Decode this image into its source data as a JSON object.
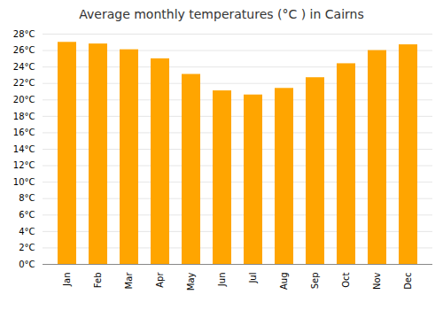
{
  "chart_data": {
    "type": "bar",
    "title": "Average monthly temperatures (°C ) in Cairns",
    "categories": [
      "Jan",
      "Feb",
      "Mar",
      "Apr",
      "May",
      "Jun",
      "Jul",
      "Aug",
      "Sep",
      "Oct",
      "Nov",
      "Dec"
    ],
    "values": [
      27.0,
      26.8,
      26.1,
      25.0,
      23.1,
      21.1,
      20.6,
      21.4,
      22.7,
      24.4,
      26.0,
      26.7
    ],
    "color": "#FFA500",
    "ylim": [
      0,
      28
    ],
    "yticks": [
      {
        "value": 0,
        "label": "0°C"
      },
      {
        "value": 2,
        "label": "2°C"
      },
      {
        "value": 4,
        "label": "4°C"
      },
      {
        "value": 6,
        "label": "6°C"
      },
      {
        "value": 8,
        "label": "8°C"
      },
      {
        "value": 10,
        "label": "10°C"
      },
      {
        "value": 12,
        "label": "12°C"
      },
      {
        "value": 14,
        "label": "14°C"
      },
      {
        "value": 16,
        "label": "16°C"
      },
      {
        "value": 18,
        "label": "18°C"
      },
      {
        "value": 20,
        "label": "20°C"
      },
      {
        "value": 22,
        "label": "22°C"
      },
      {
        "value": 24,
        "label": "24°C"
      },
      {
        "value": 26,
        "label": "26°C"
      },
      {
        "value": 28,
        "label": "28°C"
      }
    ],
    "grid": true
  }
}
